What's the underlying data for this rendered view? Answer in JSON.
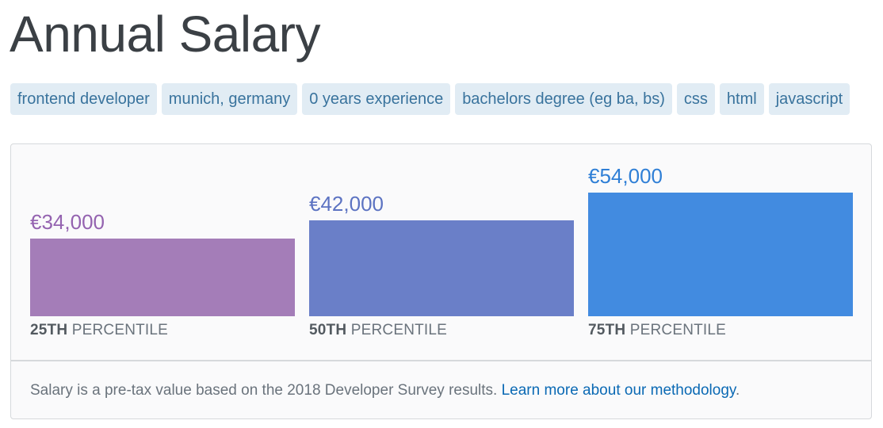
{
  "page": {
    "title": "Annual Salary"
  },
  "tags": [
    "frontend developer",
    "munich, germany",
    "0 years experience",
    "bachelors degree (eg ba, bs)",
    "css",
    "html",
    "javascript"
  ],
  "chart_data": {
    "type": "bar",
    "categories": [
      "25TH PERCENTILE",
      "50TH PERCENTILE",
      "75TH PERCENTILE"
    ],
    "category_rank": [
      "25TH",
      "50TH",
      "75TH"
    ],
    "category_suffix": "PERCENTILE",
    "values": [
      34000,
      42000,
      54000
    ],
    "value_labels": [
      "€34,000",
      "€42,000",
      "€54,000"
    ],
    "colors": [
      "#a47db8",
      "#6a7fc8",
      "#428be0"
    ],
    "value_colors": [
      "#9463b0",
      "#5c73c2",
      "#2f7fd6"
    ],
    "currency": "EUR"
  },
  "footer": {
    "text": "Salary is a pre-tax value based on the 2018 Developer Survey results. ",
    "link_text": "Learn more about our methodology",
    "trailing": "."
  }
}
